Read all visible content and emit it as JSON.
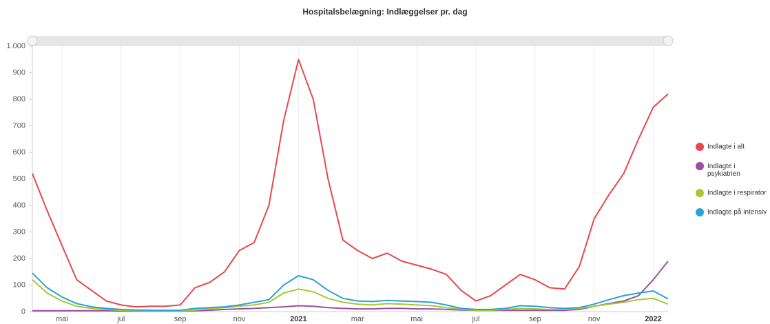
{
  "chart_data": {
    "type": "line",
    "title": "Hospitalsbelægning: Indlæggelser pr. dag",
    "categories": [
      null,
      null,
      "mai",
      null,
      null,
      null,
      "jul",
      null,
      null,
      null,
      "sep",
      null,
      null,
      null,
      "nov",
      null,
      null,
      null,
      "2021",
      null,
      null,
      null,
      "mar",
      null,
      null,
      null,
      "mai",
      null,
      null,
      null,
      "jul",
      null,
      null,
      null,
      "sep",
      null,
      null,
      null,
      "nov",
      null,
      null,
      null,
      "2022",
      null
    ],
    "series": [
      {
        "name": "Indlagte i alt",
        "color": "#e8474c",
        "values": [
          520,
          380,
          250,
          120,
          80,
          40,
          25,
          18,
          20,
          20,
          25,
          90,
          110,
          150,
          230,
          260,
          400,
          720,
          950,
          800,
          500,
          270,
          230,
          200,
          220,
          190,
          175,
          160,
          140,
          80,
          40,
          60,
          100,
          140,
          120,
          90,
          85,
          170,
          350,
          440,
          520,
          650,
          770,
          820
        ]
      },
      {
        "name": "Indlagte i psykiatrien",
        "color": "#9b4f9f",
        "values": [
          3,
          3,
          3,
          3,
          3,
          3,
          2,
          2,
          2,
          2,
          2,
          3,
          5,
          8,
          10,
          12,
          15,
          18,
          22,
          20,
          15,
          12,
          10,
          10,
          12,
          12,
          10,
          10,
          8,
          6,
          5,
          5,
          5,
          5,
          5,
          5,
          5,
          8,
          20,
          30,
          40,
          60,
          120,
          190
        ]
      },
      {
        "name": "Indlagte i respirator",
        "color": "#a8c733",
        "values": [
          120,
          70,
          40,
          20,
          12,
          8,
          5,
          4,
          3,
          3,
          3,
          6,
          10,
          15,
          20,
          25,
          35,
          70,
          85,
          75,
          50,
          35,
          28,
          25,
          30,
          28,
          25,
          22,
          15,
          8,
          5,
          5,
          8,
          12,
          10,
          8,
          8,
          12,
          20,
          28,
          35,
          45,
          50,
          28
        ]
      },
      {
        "name": "Indlagte på intensiv",
        "color": "#2aa3d1",
        "values": [
          145,
          90,
          55,
          30,
          18,
          12,
          8,
          6,
          5,
          5,
          5,
          12,
          15,
          18,
          25,
          35,
          45,
          100,
          135,
          120,
          80,
          50,
          40,
          38,
          42,
          40,
          38,
          35,
          25,
          12,
          8,
          8,
          12,
          22,
          20,
          15,
          12,
          15,
          28,
          45,
          60,
          70,
          78,
          48
        ]
      }
    ],
    "ylim": [
      0,
      1000
    ],
    "yticks": [
      0,
      100,
      200,
      300,
      400,
      500,
      600,
      700,
      800,
      900,
      {
        "value": 1000,
        "label": "1.000"
      }
    ],
    "grid": true,
    "legend": "right"
  }
}
